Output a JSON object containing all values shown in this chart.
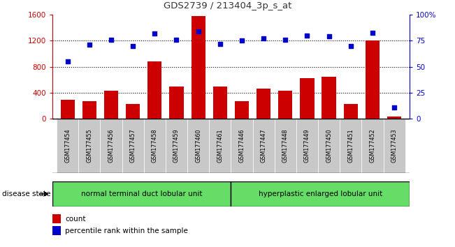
{
  "title": "GDS2739 / 213404_3p_s_at",
  "samples": [
    "GSM177454",
    "GSM177455",
    "GSM177456",
    "GSM177457",
    "GSM177458",
    "GSM177459",
    "GSM177460",
    "GSM177461",
    "GSM177446",
    "GSM177447",
    "GSM177448",
    "GSM177449",
    "GSM177450",
    "GSM177451",
    "GSM177452",
    "GSM177453"
  ],
  "counts": [
    290,
    270,
    430,
    220,
    880,
    490,
    1580,
    490,
    270,
    460,
    430,
    620,
    640,
    220,
    1200,
    30
  ],
  "percentiles": [
    55,
    71,
    76,
    70,
    82,
    76,
    84,
    72,
    75,
    77,
    76,
    80,
    79,
    70,
    83,
    11
  ],
  "group1_label": "normal terminal duct lobular unit",
  "group2_label": "hyperplastic enlarged lobular unit",
  "group1_count": 8,
  "group2_count": 8,
  "disease_state_label": "disease state",
  "bar_color": "#cc0000",
  "dot_color": "#0000cc",
  "left_ylim": [
    0,
    1600
  ],
  "right_ylim": [
    0,
    100
  ],
  "left_yticks": [
    0,
    400,
    800,
    1200,
    1600
  ],
  "right_yticks": [
    0,
    25,
    50,
    75,
    100
  ],
  "right_yticklabels": [
    "0",
    "25",
    "50",
    "75",
    "100%"
  ],
  "legend_count_label": "count",
  "legend_pct_label": "percentile rank within the sample",
  "group1_color": "#66dd66",
  "group2_color": "#66dd66",
  "tick_label_bg": "#c8c8c8",
  "title_color": "#333333",
  "dotted_grid_vals": [
    400,
    800,
    1200
  ],
  "fig_width": 6.51,
  "fig_height": 3.54,
  "dpi": 100
}
